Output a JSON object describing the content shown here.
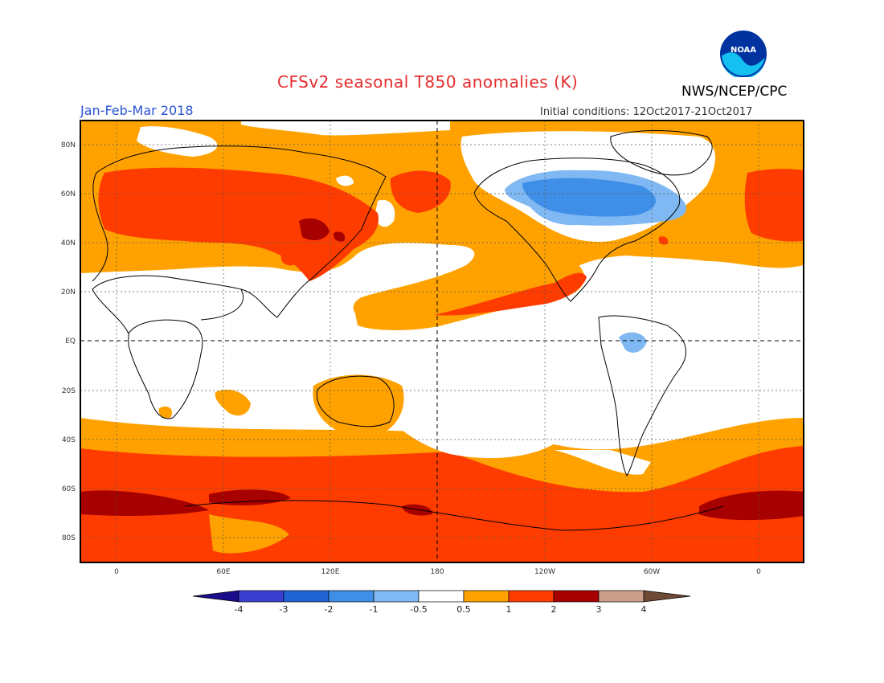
{
  "header": {
    "title": "CFSv2 seasonal T850 anomalies (K)",
    "agency": "NWS/NCEP/CPC",
    "period": "Jan-Feb-Mar 2018",
    "initial_conditions": "Initial conditions: 12Oct2017-21Oct2017",
    "logo_text": "NOAA"
  },
  "map": {
    "lat_labels": [
      "80N",
      "60N",
      "40N",
      "20N",
      "EQ",
      "20S",
      "40S",
      "60S",
      "80S"
    ],
    "lon_labels": [
      "0",
      "60E",
      "120E",
      "180",
      "120W",
      "60W",
      "0"
    ]
  },
  "colorbar": {
    "labels": [
      "-4",
      "-3",
      "-2",
      "-1",
      "-0.5",
      "0.5",
      "1",
      "2",
      "3",
      "4"
    ],
    "colors": [
      "#1a0d8c",
      "#3b3fd1",
      "#2164d6",
      "#3f8ee8",
      "#7fb8f2",
      "#ffffff",
      "#ffa200",
      "#ff3c00",
      "#a60000",
      "#caa08a",
      "#6e4a36"
    ]
  }
}
